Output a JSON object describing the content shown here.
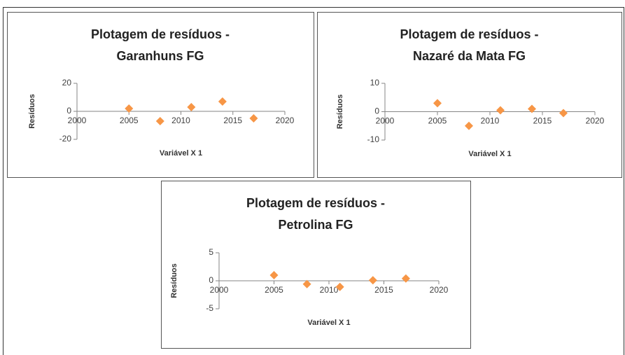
{
  "chart_data": [
    {
      "type": "scatter",
      "title": [
        "Plotagem de resíduos -",
        "Garanhuns FG"
      ],
      "xlabel": "Variável X 1",
      "ylabel": "Resíduos",
      "x": [
        2005,
        2008,
        2011,
        2014,
        2017
      ],
      "values": [
        2,
        -7,
        3,
        7,
        -5
      ],
      "color": "#f79646",
      "xlim": [
        2000,
        2020
      ],
      "xticks": [
        2000,
        2005,
        2010,
        2015,
        2020
      ],
      "ylim": [
        -20,
        20
      ],
      "yticks": [
        -20,
        0,
        20
      ]
    },
    {
      "type": "scatter",
      "title": [
        "Plotagem de resíduos -",
        "Nazaré da Mata FG"
      ],
      "xlabel": "Variável X 1",
      "ylabel": "Resíduos",
      "x": [
        2005,
        2008,
        2011,
        2014,
        2017
      ],
      "values": [
        3,
        -5,
        0.5,
        1,
        -0.5
      ],
      "color": "#f79646",
      "xlim": [
        2000,
        2020
      ],
      "xticks": [
        2000,
        2005,
        2010,
        2015,
        2020
      ],
      "ylim": [
        -10,
        10
      ],
      "yticks": [
        -10,
        0,
        10
      ]
    },
    {
      "type": "scatter",
      "title": [
        "Plotagem de resíduos -",
        "Petrolina FG"
      ],
      "xlabel": "Variável X 1",
      "ylabel": "Resíduos",
      "x": [
        2005,
        2008,
        2011,
        2014,
        2017
      ],
      "values": [
        1,
        -0.6,
        -1.1,
        0.1,
        0.4
      ],
      "color": "#f79646",
      "xlim": [
        2000,
        2020
      ],
      "xticks": [
        2000,
        2005,
        2010,
        2015,
        2020
      ],
      "ylim": [
        -5,
        5
      ],
      "yticks": [
        -5,
        0,
        5
      ]
    }
  ]
}
